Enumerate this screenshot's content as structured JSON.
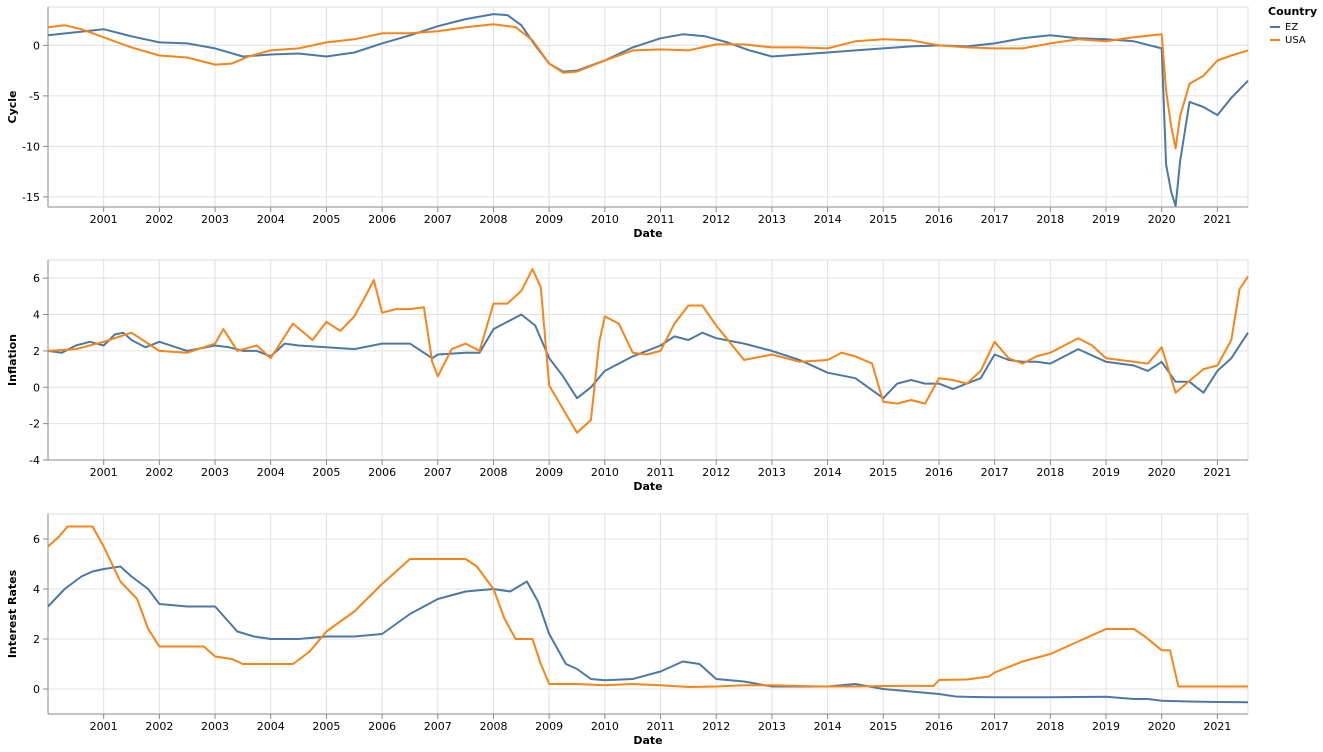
{
  "chart_data": [
    {
      "type": "line",
      "title": "",
      "xlabel": "Date",
      "ylabel": "Cycle",
      "xlim": [
        2000.0,
        2021.55
      ],
      "ylim": [
        -16,
        3.8
      ],
      "yticks": [
        -15,
        -10,
        -5,
        0
      ],
      "xticks": [
        2001,
        2002,
        2003,
        2004,
        2005,
        2006,
        2007,
        2008,
        2009,
        2010,
        2011,
        2012,
        2013,
        2014,
        2015,
        2016,
        2017,
        2018,
        2019,
        2020,
        2021
      ],
      "grid": true,
      "series": [
        {
          "name": "EZ",
          "color": "#4c78a8",
          "x": [
            2000.0,
            2000.5,
            2001.0,
            2001.5,
            2002.0,
            2002.5,
            2003.0,
            2003.5,
            2004.0,
            2004.5,
            2005.0,
            2005.5,
            2006.0,
            2006.5,
            2007.0,
            2007.5,
            2008.0,
            2008.25,
            2008.5,
            2008.75,
            2009.0,
            2009.25,
            2009.5,
            2010.0,
            2010.5,
            2011.0,
            2011.4,
            2011.8,
            2012.2,
            2012.6,
            2013.0,
            2013.5,
            2014.0,
            2014.5,
            2015.0,
            2015.5,
            2016.0,
            2016.5,
            2017.0,
            2017.5,
            2018.0,
            2018.5,
            2019.0,
            2019.5,
            2020.0,
            2020.08,
            2020.17,
            2020.25,
            2020.33,
            2020.5,
            2020.75,
            2021.0,
            2021.25,
            2021.55
          ],
          "values": [
            1.0,
            1.3,
            1.6,
            0.9,
            0.3,
            0.2,
            -0.3,
            -1.1,
            -0.9,
            -0.8,
            -1.1,
            -0.7,
            0.2,
            1.0,
            1.9,
            2.6,
            3.1,
            3.0,
            2.0,
            0.0,
            -1.8,
            -2.6,
            -2.5,
            -1.5,
            -0.2,
            0.7,
            1.1,
            0.9,
            0.3,
            -0.5,
            -1.1,
            -0.9,
            -0.7,
            -0.5,
            -0.3,
            -0.1,
            0.0,
            -0.1,
            0.2,
            0.7,
            1.0,
            0.7,
            0.6,
            0.4,
            -0.3,
            -11.8,
            -14.5,
            -15.9,
            -11.5,
            -5.6,
            -6.1,
            -6.9,
            -5.2,
            -3.5
          ]
        },
        {
          "name": "USA",
          "color": "#f58518",
          "x": [
            2000.0,
            2000.3,
            2000.6,
            2001.0,
            2001.5,
            2002.0,
            2002.5,
            2003.0,
            2003.3,
            2003.6,
            2004.0,
            2004.5,
            2005.0,
            2005.5,
            2006.0,
            2006.5,
            2007.0,
            2007.5,
            2008.0,
            2008.4,
            2008.7,
            2009.0,
            2009.25,
            2009.5,
            2010.0,
            2010.5,
            2011.0,
            2011.5,
            2012.0,
            2012.5,
            2013.0,
            2013.5,
            2014.0,
            2014.5,
            2015.0,
            2015.5,
            2016.0,
            2016.5,
            2017.0,
            2017.5,
            2018.0,
            2018.5,
            2019.0,
            2019.5,
            2020.0,
            2020.08,
            2020.17,
            2020.25,
            2020.33,
            2020.5,
            2020.75,
            2021.0,
            2021.25,
            2021.55
          ],
          "values": [
            1.8,
            2.0,
            1.6,
            0.8,
            -0.2,
            -1.0,
            -1.2,
            -1.9,
            -1.8,
            -1.1,
            -0.5,
            -0.3,
            0.3,
            0.6,
            1.2,
            1.2,
            1.4,
            1.8,
            2.1,
            1.8,
            0.5,
            -1.8,
            -2.7,
            -2.6,
            -1.5,
            -0.5,
            -0.4,
            -0.5,
            0.1,
            0.1,
            -0.2,
            -0.2,
            -0.3,
            0.4,
            0.6,
            0.5,
            0.0,
            -0.2,
            -0.3,
            -0.3,
            0.2,
            0.6,
            0.4,
            0.8,
            1.1,
            -4.5,
            -8.0,
            -10.2,
            -7.0,
            -3.8,
            -3.0,
            -1.5,
            -1.0,
            -0.5
          ]
        }
      ]
    },
    {
      "type": "line",
      "title": "",
      "xlabel": "Date",
      "ylabel": "Inflation",
      "xlim": [
        2000.0,
        2021.55
      ],
      "ylim": [
        -4,
        7
      ],
      "yticks": [
        -4,
        -2,
        0,
        2,
        4,
        6
      ],
      "xticks": [
        2001,
        2002,
        2003,
        2004,
        2005,
        2006,
        2007,
        2008,
        2009,
        2010,
        2011,
        2012,
        2013,
        2014,
        2015,
        2016,
        2017,
        2018,
        2019,
        2020,
        2021
      ],
      "grid": true,
      "series": [
        {
          "name": "EZ",
          "color": "#4c78a8",
          "x": [
            2000.0,
            2000.25,
            2000.5,
            2000.75,
            2001.0,
            2001.2,
            2001.35,
            2001.5,
            2001.75,
            2002.0,
            2002.5,
            2003.0,
            2003.25,
            2003.5,
            2003.75,
            2004.0,
            2004.25,
            2004.5,
            2005.0,
            2005.5,
            2006.0,
            2006.5,
            2006.9,
            2007.0,
            2007.5,
            2007.75,
            2008.0,
            2008.25,
            2008.5,
            2008.75,
            2009.0,
            2009.25,
            2009.5,
            2009.75,
            2010.0,
            2010.5,
            2011.0,
            2011.25,
            2011.5,
            2011.75,
            2012.0,
            2012.5,
            2013.0,
            2013.5,
            2014.0,
            2014.5,
            2015.0,
            2015.25,
            2015.5,
            2015.75,
            2016.0,
            2016.25,
            2016.5,
            2016.75,
            2017.0,
            2017.25,
            2017.5,
            2017.75,
            2018.0,
            2018.5,
            2019.0,
            2019.5,
            2019.75,
            2020.0,
            2020.25,
            2020.5,
            2020.75,
            2021.0,
            2021.25,
            2021.55
          ],
          "values": [
            2.0,
            1.9,
            2.3,
            2.5,
            2.3,
            2.9,
            3.0,
            2.6,
            2.2,
            2.5,
            2.0,
            2.3,
            2.2,
            2.0,
            2.0,
            1.7,
            2.4,
            2.3,
            2.2,
            2.1,
            2.4,
            2.4,
            1.6,
            1.8,
            1.9,
            1.9,
            3.2,
            3.6,
            4.0,
            3.4,
            1.6,
            0.6,
            -0.6,
            0.0,
            0.9,
            1.7,
            2.3,
            2.8,
            2.6,
            3.0,
            2.7,
            2.4,
            2.0,
            1.5,
            0.8,
            0.5,
            -0.6,
            0.2,
            0.4,
            0.2,
            0.2,
            -0.1,
            0.2,
            0.5,
            1.8,
            1.5,
            1.4,
            1.4,
            1.3,
            2.1,
            1.4,
            1.2,
            0.9,
            1.4,
            0.3,
            0.3,
            -0.3,
            0.9,
            1.6,
            3.0
          ]
        },
        {
          "name": "USA",
          "color": "#f58518",
          "x": [
            2000.0,
            2000.5,
            2001.0,
            2001.5,
            2002.0,
            2002.5,
            2003.0,
            2003.15,
            2003.4,
            2003.75,
            2004.0,
            2004.4,
            2004.75,
            2005.0,
            2005.25,
            2005.5,
            2005.7,
            2005.85,
            2006.0,
            2006.25,
            2006.5,
            2006.75,
            2006.9,
            2007.0,
            2007.25,
            2007.5,
            2007.75,
            2008.0,
            2008.25,
            2008.5,
            2008.7,
            2008.85,
            2009.0,
            2009.25,
            2009.5,
            2009.75,
            2009.9,
            2010.0,
            2010.25,
            2010.5,
            2010.75,
            2011.0,
            2011.25,
            2011.5,
            2011.75,
            2012.0,
            2012.5,
            2013.0,
            2013.5,
            2014.0,
            2014.25,
            2014.5,
            2014.8,
            2015.0,
            2015.25,
            2015.5,
            2015.75,
            2016.0,
            2016.25,
            2016.5,
            2016.75,
            2017.0,
            2017.25,
            2017.5,
            2017.75,
            2018.0,
            2018.5,
            2018.75,
            2019.0,
            2019.5,
            2019.75,
            2020.0,
            2020.25,
            2020.4,
            2020.75,
            2021.0,
            2021.25,
            2021.4,
            2021.55
          ],
          "values": [
            2.0,
            2.1,
            2.5,
            3.0,
            2.0,
            1.9,
            2.4,
            3.2,
            2.0,
            2.3,
            1.6,
            3.5,
            2.6,
            3.6,
            3.1,
            3.9,
            5.0,
            5.9,
            4.1,
            4.3,
            4.3,
            4.4,
            1.4,
            0.6,
            2.1,
            2.4,
            2.0,
            4.6,
            4.6,
            5.3,
            6.5,
            5.5,
            0.1,
            -1.2,
            -2.5,
            -1.8,
            2.5,
            3.9,
            3.5,
            1.9,
            1.8,
            2.0,
            3.5,
            4.5,
            4.5,
            3.4,
            1.5,
            1.8,
            1.4,
            1.5,
            1.9,
            1.7,
            1.3,
            -0.8,
            -0.9,
            -0.7,
            -0.9,
            0.5,
            0.4,
            0.2,
            0.9,
            2.5,
            1.6,
            1.3,
            1.7,
            1.9,
            2.7,
            2.3,
            1.6,
            1.4,
            1.3,
            2.2,
            -0.3,
            0.1,
            1.0,
            1.2,
            2.6,
            5.4,
            6.1
          ]
        }
      ]
    },
    {
      "type": "line",
      "title": "",
      "xlabel": "Date",
      "ylabel": "Interest Rates",
      "xlim": [
        2000.0,
        2021.55
      ],
      "ylim": [
        -1,
        7
      ],
      "yticks": [
        0,
        2,
        4,
        6
      ],
      "xticks": [
        2001,
        2002,
        2003,
        2004,
        2005,
        2006,
        2007,
        2008,
        2009,
        2010,
        2011,
        2012,
        2013,
        2014,
        2015,
        2016,
        2017,
        2018,
        2019,
        2020,
        2021
      ],
      "grid": true,
      "series": [
        {
          "name": "EZ",
          "color": "#4c78a8",
          "x": [
            2000.0,
            2000.3,
            2000.6,
            2000.8,
            2001.0,
            2001.3,
            2001.5,
            2001.8,
            2002.0,
            2002.5,
            2003.0,
            2003.4,
            2003.7,
            2004.0,
            2004.5,
            2005.0,
            2005.5,
            2006.0,
            2006.5,
            2007.0,
            2007.5,
            2008.0,
            2008.3,
            2008.6,
            2008.8,
            2009.0,
            2009.3,
            2009.5,
            2009.75,
            2010.0,
            2010.5,
            2011.0,
            2011.4,
            2011.7,
            2012.0,
            2012.5,
            2013.0,
            2013.5,
            2014.0,
            2014.5,
            2015.0,
            2015.5,
            2016.0,
            2016.3,
            2016.6,
            2017.0,
            2017.5,
            2018.0,
            2018.5,
            2019.0,
            2019.5,
            2019.75,
            2020.0,
            2020.5,
            2021.0,
            2021.55
          ],
          "values": [
            3.3,
            4.0,
            4.5,
            4.7,
            4.8,
            4.9,
            4.5,
            4.0,
            3.4,
            3.3,
            3.3,
            2.3,
            2.1,
            2.0,
            2.0,
            2.1,
            2.1,
            2.2,
            3.0,
            3.6,
            3.9,
            4.0,
            3.9,
            4.3,
            3.5,
            2.2,
            1.0,
            0.8,
            0.4,
            0.35,
            0.4,
            0.7,
            1.1,
            1.0,
            0.4,
            0.3,
            0.1,
            0.1,
            0.1,
            0.2,
            0.0,
            -0.1,
            -0.2,
            -0.3,
            -0.32,
            -0.33,
            -0.33,
            -0.33,
            -0.32,
            -0.31,
            -0.4,
            -0.4,
            -0.47,
            -0.5,
            -0.52,
            -0.53
          ]
        },
        {
          "name": "USA",
          "color": "#f58518",
          "x": [
            2000.0,
            2000.2,
            2000.35,
            2000.6,
            2000.8,
            2001.0,
            2001.3,
            2001.6,
            2001.8,
            2002.0,
            2002.5,
            2002.8,
            2003.0,
            2003.3,
            2003.5,
            2004.0,
            2004.4,
            2004.7,
            2005.0,
            2005.5,
            2006.0,
            2006.5,
            2007.0,
            2007.5,
            2007.7,
            2008.0,
            2008.2,
            2008.4,
            2008.7,
            2008.85,
            2009.0,
            2009.5,
            2010.0,
            2010.5,
            2011.0,
            2011.5,
            2012.0,
            2012.5,
            2013.0,
            2013.5,
            2014.0,
            2014.5,
            2015.0,
            2015.5,
            2015.9,
            2016.0,
            2016.5,
            2016.9,
            2017.0,
            2017.5,
            2018.0,
            2018.5,
            2019.0,
            2019.5,
            2019.7,
            2020.0,
            2020.15,
            2020.3,
            2020.5,
            2021.0,
            2021.55
          ],
          "values": [
            5.7,
            6.1,
            6.5,
            6.5,
            6.5,
            5.7,
            4.3,
            3.6,
            2.4,
            1.7,
            1.7,
            1.7,
            1.3,
            1.2,
            1.0,
            1.0,
            1.0,
            1.5,
            2.3,
            3.1,
            4.2,
            5.2,
            5.2,
            5.2,
            4.9,
            4.0,
            2.8,
            2.0,
            2.0,
            1.0,
            0.2,
            0.2,
            0.15,
            0.2,
            0.15,
            0.08,
            0.1,
            0.15,
            0.15,
            0.12,
            0.1,
            0.1,
            0.12,
            0.13,
            0.12,
            0.36,
            0.38,
            0.5,
            0.66,
            1.1,
            1.4,
            1.9,
            2.4,
            2.4,
            2.1,
            1.55,
            1.55,
            0.1,
            0.1,
            0.1,
            0.1
          ]
        }
      ]
    }
  ],
  "legend": {
    "title": "Country",
    "items": [
      {
        "label": "EZ",
        "color": "#4c78a8"
      },
      {
        "label": "USA",
        "color": "#f58518"
      }
    ]
  }
}
